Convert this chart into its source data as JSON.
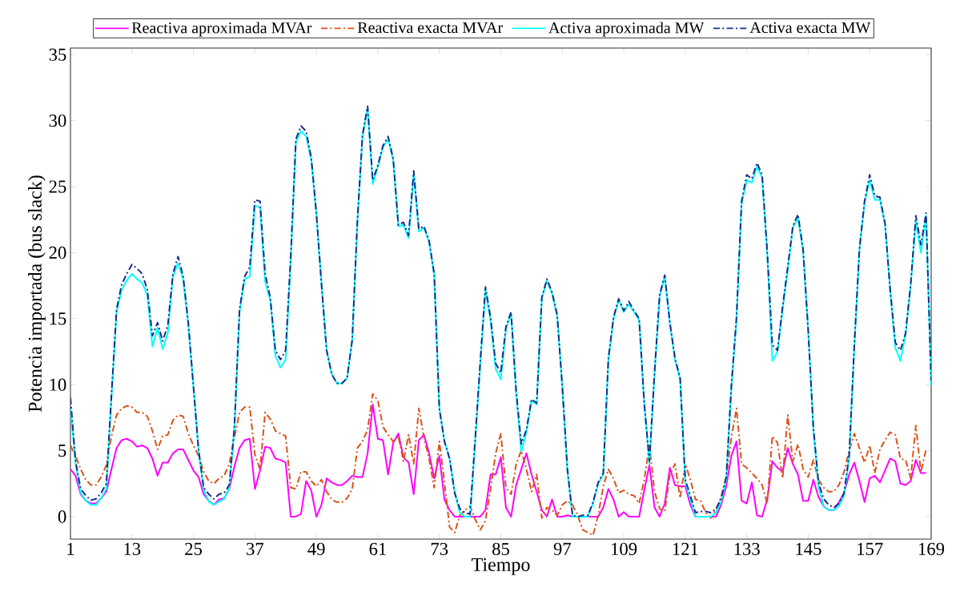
{
  "chart_data": {
    "type": "line",
    "xlabel": "Tiempo",
    "ylabel": "Potencia importada (bus slack)",
    "x": [
      1,
      2,
      3,
      4,
      5,
      6,
      7,
      8,
      9,
      10,
      11,
      12,
      13,
      14,
      15,
      16,
      17,
      18,
      19,
      20,
      21,
      22,
      23,
      24,
      25,
      26,
      27,
      28,
      29,
      30,
      31,
      32,
      33,
      34,
      35,
      36,
      37,
      38,
      39,
      40,
      41,
      42,
      43,
      44,
      45,
      46,
      47,
      48,
      49,
      50,
      51,
      52,
      53,
      54,
      55,
      56,
      57,
      58,
      59,
      60,
      61,
      62,
      63,
      64,
      65,
      66,
      67,
      68,
      69,
      70,
      71,
      72,
      73,
      74,
      75,
      76,
      77,
      78,
      79,
      80,
      81,
      82,
      83,
      84,
      85,
      86,
      87,
      88,
      89,
      90,
      91,
      92,
      93,
      94,
      95,
      96,
      97,
      98,
      99,
      100,
      101,
      102,
      103,
      104,
      105,
      106,
      107,
      108,
      109,
      110,
      111,
      112,
      113,
      114,
      115,
      116,
      117,
      118,
      119,
      120,
      121,
      122,
      123,
      124,
      125,
      126,
      127,
      128,
      129,
      130,
      131,
      132,
      133,
      134,
      135,
      136,
      137,
      138,
      139,
      140,
      141,
      142,
      143,
      144,
      145,
      146,
      147,
      148,
      149,
      150,
      151,
      152,
      153,
      154,
      155,
      156,
      157,
      158,
      159,
      160,
      161,
      162,
      163,
      164,
      165,
      166,
      167,
      168,
      169
    ],
    "xlim": [
      1,
      169
    ],
    "xticks": [
      1,
      13,
      25,
      37,
      49,
      61,
      73,
      85,
      97,
      109,
      121,
      133,
      145,
      157,
      169
    ],
    "ylim": [
      -1.7,
      35.5
    ],
    "yticks": [
      0,
      5,
      10,
      15,
      20,
      25,
      30,
      35
    ],
    "grid": false,
    "legend": "top",
    "series": [
      {
        "name": "Reactiva aproximada MVAr",
        "color": "#ff00ff",
        "line_style": "solid",
        "values": [
          3.6,
          3.1,
          1.7,
          1.2,
          1.0,
          1.0,
          1.4,
          1.9,
          3.6,
          5.2,
          5.8,
          5.9,
          5.7,
          5.3,
          5.4,
          5.2,
          4.4,
          3.1,
          4.1,
          4.1,
          4.8,
          5.1,
          5.1,
          4.3,
          3.5,
          3.0,
          1.7,
          1.2,
          0.9,
          1.3,
          1.4,
          2.1,
          3.8,
          5.2,
          5.8,
          5.9,
          2.1,
          3.5,
          5.3,
          5.2,
          4.4,
          4.3,
          4.1,
          0,
          0,
          0.2,
          2.7,
          2.0,
          0,
          0.9,
          2.9,
          2.6,
          2.4,
          2.4,
          2.7,
          3.1,
          3.0,
          3.0,
          4.8,
          8.5,
          5.9,
          5.8,
          3.2,
          5.6,
          6.3,
          4.5,
          4.1,
          1.7,
          5.8,
          6.2,
          4.8,
          2.9,
          4.6,
          1.3,
          0.5,
          0,
          0,
          0,
          0,
          0,
          0,
          0.5,
          3.2,
          3.2,
          4.5,
          0.7,
          0,
          2.4,
          3.6,
          4.8,
          3.2,
          1.9,
          0.5,
          0,
          1.3,
          0,
          0,
          0.1,
          0,
          0,
          0,
          0,
          0,
          0,
          0.7,
          2.1,
          1.3,
          0,
          0.35,
          0,
          0,
          0,
          2.0,
          3.9,
          0.7,
          0,
          1.0,
          3.7,
          2.4,
          2.3,
          2.3,
          0.9,
          0,
          0,
          0,
          0,
          0,
          0.9,
          2.3,
          4.6,
          5.7,
          1.2,
          1.0,
          2.6,
          0.1,
          0,
          1.3,
          4.2,
          3.7,
          3.4,
          5.2,
          4.0,
          3.2,
          1.2,
          1.2,
          2.8,
          1.5,
          0.8,
          0.5,
          0.5,
          1.1,
          1.8,
          3.2,
          4.1,
          2.7,
          1.1,
          2.9,
          3.1,
          2.6,
          3.5,
          4.4,
          4.2,
          2.5,
          2.4,
          2.7,
          4.3,
          3.3,
          3.3,
          null
        ]
      },
      {
        "name": "Reactiva exacta MVAr",
        "color": "#d95319",
        "line_style": "dashed",
        "values": [
          5.4,
          4.6,
          3.6,
          2.8,
          2.4,
          2.4,
          3.0,
          3.9,
          6.1,
          7.7,
          8.2,
          8.4,
          8.3,
          7.9,
          7.9,
          7.6,
          6.5,
          5.1,
          6.1,
          6.2,
          7.3,
          7.7,
          7.6,
          6.3,
          5.4,
          4.6,
          3.4,
          2.7,
          2.5,
          2.9,
          3.1,
          4.0,
          6.0,
          7.9,
          8.3,
          8.3,
          4.7,
          3.6,
          7.9,
          7.4,
          6.5,
          6.3,
          6.1,
          2.2,
          2.1,
          3.4,
          3.4,
          2.7,
          2.3,
          2.8,
          1.9,
          1.3,
          1.1,
          1.1,
          1.4,
          2.1,
          5.2,
          5.7,
          6.6,
          9.3,
          8.8,
          6.8,
          6.2,
          5.7,
          6.1,
          4.2,
          6.2,
          4.0,
          8.2,
          6.0,
          4.4,
          2.2,
          5.7,
          2.6,
          -0.8,
          -1.2,
          0.1,
          0.5,
          0.8,
          -0.2,
          -1.0,
          -0.3,
          2.1,
          4.8,
          6.3,
          2.2,
          1.7,
          4.0,
          5.0,
          3.6,
          1.9,
          3.2,
          -0.1,
          0.7,
          0.5,
          0.1,
          0.9,
          1.2,
          0.9,
          0.1,
          -1.0,
          -1.2,
          -1.4,
          0.1,
          2.3,
          3.6,
          2.9,
          1.8,
          2.0,
          1.7,
          1.6,
          1.0,
          2.8,
          5.4,
          1.9,
          0.6,
          0.4,
          3.2,
          4.0,
          1.4,
          4.0,
          2.8,
          1.3,
          1.2,
          0.3,
          -0.1,
          0.5,
          1.5,
          3.0,
          6.0,
          8.2,
          4.0,
          3.7,
          3.3,
          2.9,
          2.4,
          1.0,
          6.1,
          5.6,
          2.9,
          7.7,
          4.2,
          5.5,
          3.6,
          3.0,
          4.3,
          2.8,
          2.2,
          1.9,
          1.9,
          2.4,
          3.4,
          5.0,
          6.3,
          5.2,
          4.1,
          5.4,
          3.3,
          5.1,
          5.8,
          6.4,
          6.2,
          4.4,
          4.3,
          2.9,
          6.9,
          3.4,
          5.1,
          null
        ]
      },
      {
        "name": "Activa aproximada MW",
        "color": "#00ffff",
        "line_style": "solid",
        "values": [
          8.3,
          4.0,
          1.8,
          1.2,
          0.9,
          0.9,
          1.4,
          2.1,
          9.0,
          15.5,
          17.2,
          17.9,
          18.4,
          18.0,
          17.7,
          16.8,
          12.9,
          14.3,
          12.7,
          13.9,
          18.2,
          19.2,
          18.0,
          14.5,
          9.8,
          5.0,
          2.0,
          1.15,
          0.9,
          1.15,
          1.35,
          2.2,
          6.7,
          15.5,
          18.0,
          18.2,
          23.6,
          23.4,
          17.8,
          16.4,
          12.2,
          11.3,
          11.9,
          19.5,
          28.4,
          29.2,
          28.8,
          27.0,
          22.9,
          17.6,
          12.6,
          10.8,
          10.1,
          10.1,
          10.5,
          13.4,
          22.3,
          28.8,
          30.9,
          25.2,
          26.5,
          28.0,
          28.6,
          27.0,
          22.0,
          22.1,
          21.1,
          26.0,
          21.6,
          21.9,
          20.8,
          18.3,
          8.2,
          5.7,
          4.4,
          1.8,
          0.3,
          0,
          0,
          5.7,
          11.6,
          17.2,
          14.8,
          11.2,
          10.4,
          14.2,
          15.4,
          9.3,
          4.9,
          6.4,
          8.8,
          8.5,
          16.5,
          17.9,
          16.9,
          15.2,
          9.8,
          3.4,
          0,
          0,
          0,
          0,
          1.0,
          2.5,
          3.2,
          11.9,
          15.0,
          16.4,
          15.5,
          16.1,
          15.5,
          14.9,
          8.5,
          4.0,
          10.8,
          16.7,
          18.2,
          14.6,
          11.9,
          10.4,
          2.6,
          1.3,
          0,
          0,
          0,
          0,
          0.3,
          1.1,
          2.8,
          9.7,
          14.9,
          23.7,
          25.5,
          25.3,
          26.5,
          25.7,
          19.9,
          11.8,
          12.5,
          15.7,
          18.7,
          21.9,
          22.6,
          20.1,
          14.0,
          6.6,
          2.3,
          0.8,
          0.5,
          0.5,
          0.8,
          1.6,
          4.5,
          12.9,
          20.2,
          23.8,
          25.5,
          24.0,
          24.0,
          22.1,
          17.1,
          12.8,
          11.8,
          13.8,
          17.5,
          22.4,
          20.0,
          22.8,
          9.9
        ]
      },
      {
        "name": "Activa exacta MW",
        "color": "#1a2e8c",
        "line_style": "dashed",
        "values": [
          9.0,
          4.2,
          2.1,
          1.6,
          1.25,
          1.35,
          1.8,
          2.5,
          9.2,
          15.7,
          17.6,
          18.4,
          19.1,
          18.8,
          18.4,
          17.2,
          13.7,
          14.7,
          13.3,
          14.5,
          18.4,
          19.7,
          18.2,
          14.7,
          9.9,
          5.1,
          2.2,
          1.7,
          1.35,
          1.7,
          1.8,
          2.4,
          6.8,
          15.7,
          18.2,
          18.9,
          24.0,
          23.9,
          18.4,
          16.6,
          12.6,
          11.9,
          12.6,
          19.7,
          28.6,
          29.6,
          29.2,
          27.2,
          23.0,
          17.6,
          12.6,
          10.8,
          10.1,
          10.1,
          10.5,
          13.4,
          22.4,
          28.9,
          31.1,
          25.5,
          26.6,
          28.1,
          28.8,
          27.1,
          22.1,
          22.3,
          21.3,
          26.2,
          21.8,
          22.0,
          20.9,
          18.4,
          8.2,
          5.7,
          4.4,
          1.8,
          0.6,
          0.3,
          0.2,
          5.9,
          11.8,
          17.4,
          15.1,
          11.6,
          10.9,
          14.4,
          15.5,
          9.5,
          5.5,
          6.6,
          8.9,
          8.6,
          16.6,
          18.0,
          17.0,
          15.3,
          9.9,
          3.6,
          0.1,
          0,
          0.1,
          0.1,
          1.1,
          2.6,
          3.3,
          12.0,
          15.1,
          16.5,
          15.6,
          16.3,
          15.6,
          15.0,
          8.6,
          4.2,
          10.9,
          16.8,
          18.3,
          14.7,
          12.0,
          10.5,
          2.8,
          1.6,
          0.3,
          0.4,
          0.4,
          0.3,
          0.6,
          1.35,
          3.0,
          9.9,
          15.1,
          23.9,
          25.9,
          25.6,
          26.8,
          25.9,
          20.1,
          13.0,
          12.6,
          15.9,
          18.9,
          22.0,
          22.9,
          20.3,
          14.1,
          6.8,
          2.6,
          1.35,
          0.9,
          0.7,
          1.0,
          1.8,
          4.7,
          13.0,
          20.3,
          23.9,
          25.9,
          24.3,
          24.2,
          22.2,
          17.2,
          13.2,
          12.6,
          13.9,
          17.6,
          22.8,
          20.6,
          23.0,
          10.3
        ]
      }
    ]
  }
}
